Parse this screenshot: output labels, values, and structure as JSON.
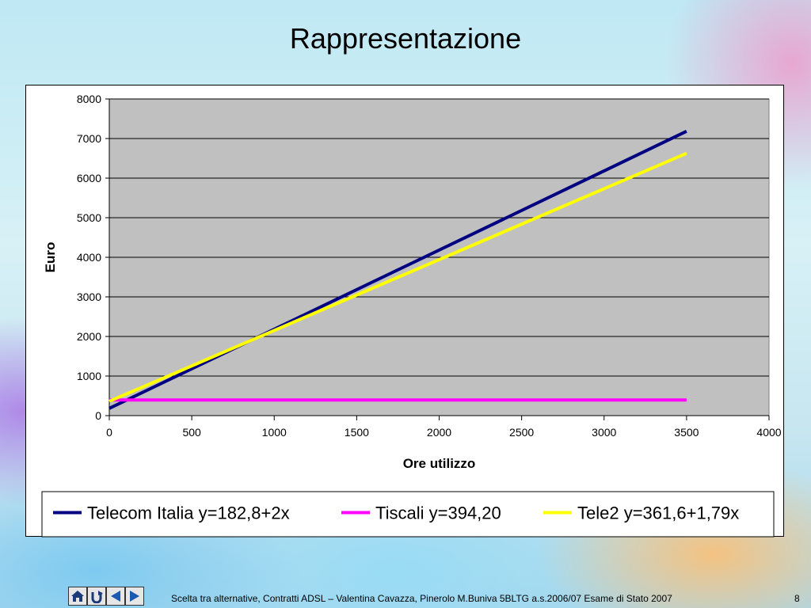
{
  "slide": {
    "title": "Rappresentazione",
    "footer": "Scelta tra alternative, Contratti ADSL – Valentina Cavazza, Pinerolo M.Buniva 5BLTG a.s.2006/07 Esame di Stato 2007",
    "page_number": "8"
  },
  "nav": [
    {
      "name": "home-icon"
    },
    {
      "name": "return-icon"
    },
    {
      "name": "previous-icon"
    },
    {
      "name": "next-icon"
    }
  ],
  "colors": {
    "plot_bg": "#c0c0c0",
    "telecom": "#000080",
    "tiscali": "#ff00ff",
    "tele2": "#ffff00"
  },
  "chart_data": {
    "type": "line",
    "title": "",
    "xlabel": "Ore utilizzo",
    "ylabel": "Euro",
    "xlim": [
      0,
      4000
    ],
    "ylim": [
      0,
      8000
    ],
    "x_ticks": [
      "0",
      "500",
      "1000",
      "1500",
      "2000",
      "2500",
      "3000",
      "3500",
      "4000"
    ],
    "y_ticks": [
      "0",
      "1000",
      "2000",
      "3000",
      "4000",
      "5000",
      "6000",
      "7000",
      "8000"
    ],
    "grid": "horizontal",
    "legend_position": "bottom",
    "series": [
      {
        "name": "Telecom Italia y=182,8+2x",
        "color": "#000080",
        "points": [
          [
            0,
            182.8
          ],
          [
            3500,
            7182.8
          ]
        ]
      },
      {
        "name": "Tiscali y=394,20",
        "color": "#ff00ff",
        "points": [
          [
            0,
            394.2
          ],
          [
            3500,
            394.2
          ]
        ]
      },
      {
        "name": "Tele2 y=361,6+1,79x",
        "color": "#ffff00",
        "points": [
          [
            0,
            361.6
          ],
          [
            3500,
            6626.6
          ]
        ]
      }
    ]
  }
}
